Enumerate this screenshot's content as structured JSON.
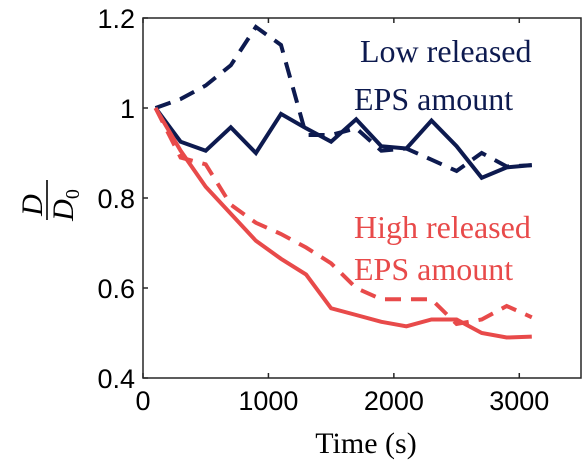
{
  "chart_data": {
    "type": "line",
    "title": "",
    "xlabel": "Time (s)",
    "ylabel": {
      "numerator": "D",
      "denominator": "D",
      "denominator_subscript": "0"
    },
    "xlim": [
      0,
      3500
    ],
    "ylim": [
      0.4,
      1.2
    ],
    "xticks": [
      0,
      1000,
      2000,
      3000
    ],
    "xtick_labels": [
      "0",
      "1000",
      "2000",
      "3000"
    ],
    "yticks": [
      0.4,
      0.6,
      0.8,
      1.0,
      1.2
    ],
    "ytick_labels": [
      "0.4",
      "0.6",
      "0.8",
      "1",
      "1.2"
    ],
    "grid": false,
    "series": [
      {
        "group": "low",
        "style": "solid",
        "color": "#0d1a4f",
        "x": [
          100,
          300,
          500,
          700,
          900,
          1100,
          1300,
          1500,
          1700,
          1900,
          2100,
          2300,
          2500,
          2700,
          2900,
          3100
        ],
        "y": [
          1.0,
          0.925,
          0.905,
          0.957,
          0.9,
          0.987,
          0.955,
          0.925,
          0.975,
          0.915,
          0.91,
          0.972,
          0.915,
          0.845,
          0.868,
          0.873
        ]
      },
      {
        "group": "low",
        "style": "dashed",
        "color": "#0d1a4f",
        "x": [
          100,
          300,
          500,
          700,
          900,
          1100,
          1300,
          1500,
          1700,
          1900,
          2100,
          2300,
          2500,
          2700,
          2900,
          3100
        ],
        "y": [
          1.0,
          1.02,
          1.05,
          1.095,
          1.18,
          1.14,
          0.94,
          0.94,
          0.955,
          0.905,
          0.91,
          0.885,
          0.86,
          0.9,
          0.87,
          0.873
        ]
      },
      {
        "group": "high",
        "style": "solid",
        "color": "#e84a4a",
        "x": [
          100,
          300,
          500,
          700,
          900,
          1100,
          1300,
          1500,
          1700,
          1900,
          2100,
          2300,
          2500,
          2700,
          2900,
          3100
        ],
        "y": [
          1.0,
          0.905,
          0.825,
          0.765,
          0.705,
          0.665,
          0.63,
          0.555,
          0.54,
          0.525,
          0.515,
          0.53,
          0.53,
          0.5,
          0.49,
          0.492
        ]
      },
      {
        "group": "high",
        "style": "dashed",
        "color": "#e84a4a",
        "x": [
          100,
          300,
          500,
          700,
          900,
          1100,
          1300,
          1500,
          1700,
          1900,
          2100,
          2300,
          2500,
          2700,
          2900,
          3100
        ],
        "y": [
          1.0,
          0.89,
          0.875,
          0.785,
          0.745,
          0.72,
          0.69,
          0.655,
          0.6,
          0.575,
          0.575,
          0.575,
          0.52,
          0.53,
          0.56,
          0.535
        ]
      }
    ],
    "annotations": [
      {
        "lines": [
          "Low released",
          "EPS amount"
        ],
        "color": "#0d1a4f"
      },
      {
        "lines": [
          "High released",
          "EPS amount"
        ],
        "color": "#e84a4a"
      }
    ]
  }
}
